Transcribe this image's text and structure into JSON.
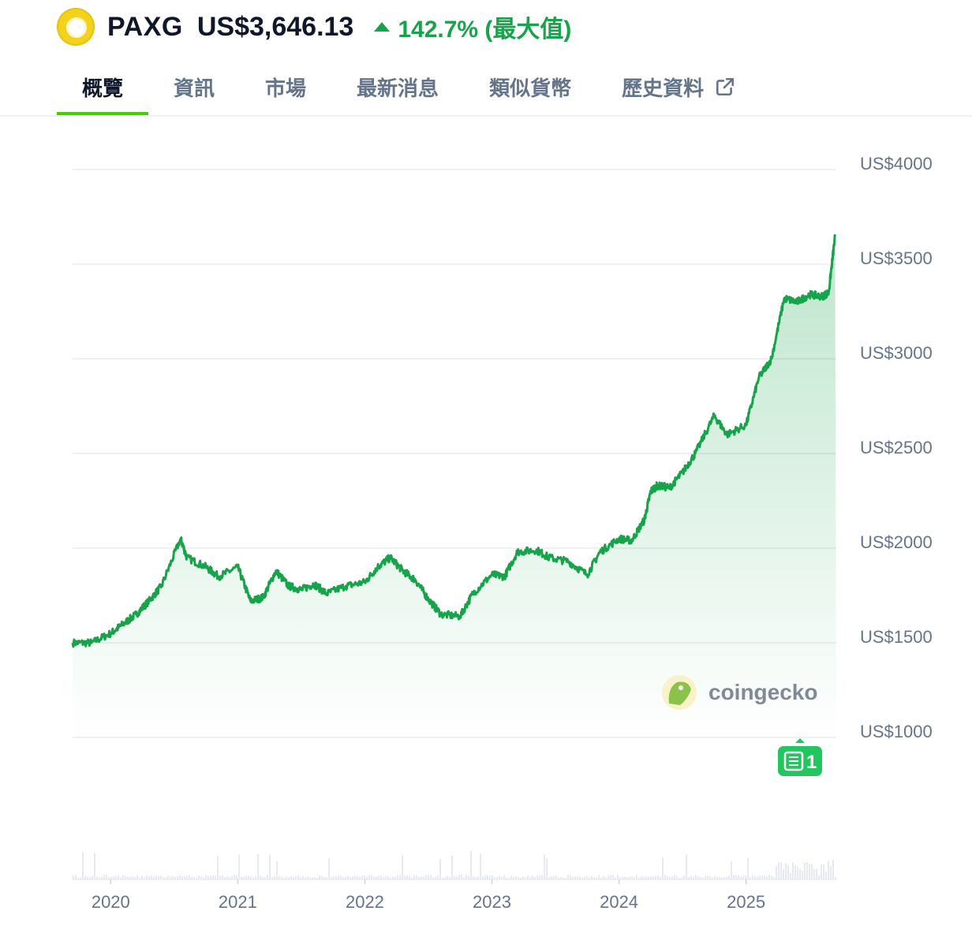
{
  "header": {
    "symbol": "PAXG",
    "price": "US$3,646.13",
    "change": "142.7% (最大值)",
    "change_color": "#16a34a",
    "logo_icon": "paxg-coin-icon"
  },
  "tabs": [
    {
      "label": "概覽",
      "active": true
    },
    {
      "label": "資訊",
      "active": false
    },
    {
      "label": "市場",
      "active": false
    },
    {
      "label": "最新消息",
      "active": false
    },
    {
      "label": "類似貨幣",
      "active": false
    },
    {
      "label": "歷史資料",
      "active": false,
      "icon": "external-link-icon"
    }
  ],
  "watermark": "coingecko",
  "news_badge": "1",
  "chart_data": {
    "type": "area",
    "line_color": "#16a34a",
    "grid": true,
    "y_axis_position": "right",
    "ylim": [
      1000,
      4000
    ],
    "yticks": [
      4000,
      3500,
      3000,
      2500,
      2000,
      1500,
      1000
    ],
    "ytick_labels": [
      "US$4000",
      "US$3500",
      "US$3000",
      "US$2500",
      "US$2000",
      "US$1500",
      "US$1000"
    ],
    "xlim": [
      2019.7,
      2025.71
    ],
    "xticks": [
      2020,
      2021,
      2022,
      2023,
      2024,
      2025
    ],
    "xtick_labels": [
      "2020",
      "2021",
      "2022",
      "2023",
      "2024",
      "2025"
    ],
    "x": [
      2019.7,
      2019.85,
      2020.0,
      2020.1,
      2020.2,
      2020.3,
      2020.4,
      2020.55,
      2020.6,
      2020.75,
      2020.85,
      2021.0,
      2021.1,
      2021.2,
      2021.3,
      2021.4,
      2021.5,
      2021.6,
      2021.7,
      2021.85,
      2022.0,
      2022.1,
      2022.2,
      2022.3,
      2022.4,
      2022.5,
      2022.6,
      2022.75,
      2022.85,
      2023.0,
      2023.1,
      2023.2,
      2023.35,
      2023.45,
      2023.6,
      2023.75,
      2023.85,
      2024.0,
      2024.1,
      2024.2,
      2024.25,
      2024.3,
      2024.4,
      2024.5,
      2024.6,
      2024.75,
      2024.85,
      2025.0,
      2025.1,
      2025.2,
      2025.3,
      2025.4,
      2025.5,
      2025.6,
      2025.65,
      2025.7
    ],
    "values": [
      1500,
      1500,
      1550,
      1600,
      1650,
      1720,
      1800,
      2050,
      1950,
      1900,
      1850,
      1900,
      1720,
      1740,
      1880,
      1800,
      1780,
      1810,
      1760,
      1800,
      1820,
      1900,
      1950,
      1880,
      1830,
      1730,
      1650,
      1640,
      1760,
      1860,
      1850,
      1980,
      1990,
      1950,
      1930,
      1860,
      1980,
      2050,
      2040,
      2150,
      2300,
      2330,
      2320,
      2400,
      2500,
      2700,
      2600,
      2650,
      2900,
      3000,
      3320,
      3300,
      3340,
      3330,
      3350,
      3646
    ]
  }
}
